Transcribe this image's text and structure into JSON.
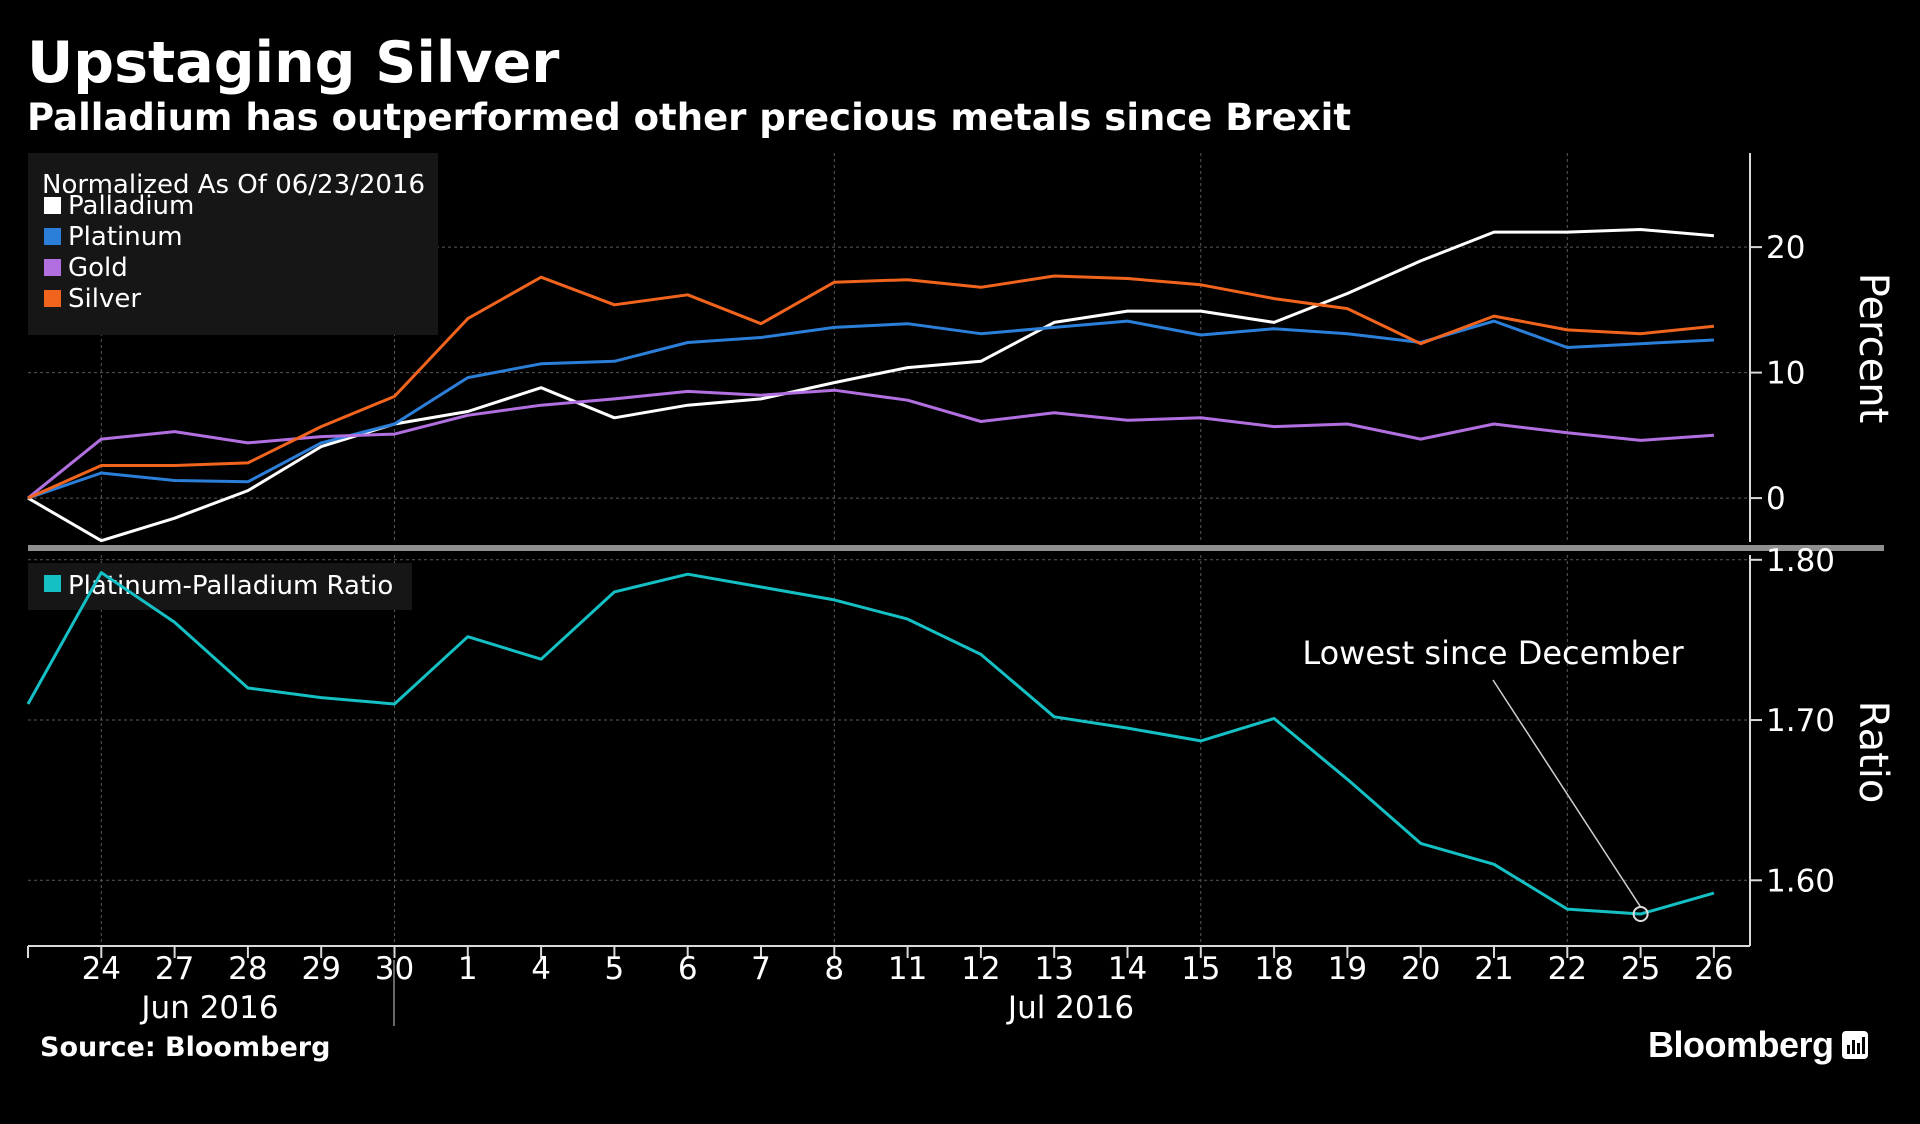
{
  "header": {
    "title": "Upstaging Silver",
    "subtitle": "Palladium has outperformed other precious metals since Brexit"
  },
  "footer": {
    "source": "Source: Bloomberg",
    "brand": "Bloomberg"
  },
  "chart_data": [
    {
      "type": "line",
      "legend_title": "Normalized As Of 06/23/2016",
      "legend_position": "top-left",
      "x": [
        "23",
        "24",
        "27",
        "28",
        "29",
        "30",
        "1",
        "4",
        "5",
        "6",
        "7",
        "8",
        "11",
        "12",
        "13",
        "14",
        "15",
        "18",
        "19",
        "20",
        "21",
        "22",
        "25",
        "26"
      ],
      "x_tick_labels": [
        "24",
        "27",
        "28",
        "29",
        "30",
        "1",
        "4",
        "5",
        "6",
        "7",
        "8",
        "11",
        "12",
        "13",
        "14",
        "15",
        "18",
        "19",
        "20",
        "21",
        "22",
        "25",
        "26"
      ],
      "x_group_labels": [
        "Jun 2016",
        "Jul 2016"
      ],
      "ylabel": "Percent",
      "ylim": [
        -3.5,
        27.5
      ],
      "y_ticks": [
        0,
        10,
        20
      ],
      "y_tick_labels": [
        "0",
        "10",
        "20"
      ],
      "grid": true,
      "series": [
        {
          "name": "Palladium",
          "color": "#ffffff",
          "values": [
            0,
            -3.4,
            -1.6,
            0.6,
            4.1,
            5.9,
            6.9,
            8.8,
            6.4,
            7.4,
            7.9,
            9.2,
            10.4,
            10.9,
            14.0,
            14.9,
            14.9,
            14.0,
            16.3,
            18.9,
            21.2,
            21.2,
            21.4,
            20.9
          ]
        },
        {
          "name": "Platinum",
          "color": "#2c7fd8",
          "values": [
            0,
            2.0,
            1.4,
            1.3,
            4.4,
            5.9,
            9.6,
            10.7,
            10.9,
            12.4,
            12.8,
            13.6,
            13.9,
            13.1,
            13.6,
            14.1,
            13.0,
            13.5,
            13.1,
            12.4,
            14.1,
            12.0,
            12.3,
            12.6
          ]
        },
        {
          "name": "Gold",
          "color": "#b16fe0",
          "values": [
            0,
            4.7,
            5.3,
            4.4,
            4.9,
            5.1,
            6.6,
            7.4,
            7.9,
            8.5,
            8.2,
            8.6,
            7.8,
            6.1,
            6.8,
            6.2,
            6.4,
            5.7,
            5.9,
            4.7,
            5.9,
            5.2,
            4.6,
            5.0
          ]
        },
        {
          "name": "Silver",
          "color": "#f0641e",
          "values": [
            0,
            2.6,
            2.6,
            2.8,
            5.7,
            8.1,
            14.3,
            17.6,
            15.4,
            16.2,
            13.9,
            17.2,
            17.4,
            16.8,
            17.7,
            17.5,
            17.0,
            15.9,
            15.1,
            12.3,
            14.5,
            13.4,
            13.1,
            13.7
          ]
        }
      ]
    },
    {
      "type": "line",
      "legend_position": "top-left",
      "x": [
        "23",
        "24",
        "27",
        "28",
        "29",
        "30",
        "1",
        "4",
        "5",
        "6",
        "7",
        "8",
        "11",
        "12",
        "13",
        "14",
        "15",
        "18",
        "19",
        "20",
        "21",
        "22",
        "25",
        "26"
      ],
      "ylabel": "Ratio",
      "ylim": [
        1.559,
        1.803
      ],
      "y_ticks": [
        1.6,
        1.7,
        1.8
      ],
      "y_tick_labels": [
        "1.60",
        "1.70",
        "1.80"
      ],
      "grid": true,
      "series": [
        {
          "name": "Platinum-Palladium Ratio",
          "color": "#15c0c4",
          "values": [
            1.71,
            1.792,
            1.761,
            1.72,
            1.714,
            1.71,
            1.752,
            1.738,
            1.78,
            1.791,
            1.783,
            1.775,
            1.763,
            1.741,
            1.702,
            1.695,
            1.687,
            1.701,
            1.663,
            1.623,
            1.61,
            1.582,
            1.579,
            1.592
          ]
        }
      ],
      "annotation": {
        "text": "Lowest since December",
        "x_index": 22,
        "value": 1.579
      }
    }
  ]
}
